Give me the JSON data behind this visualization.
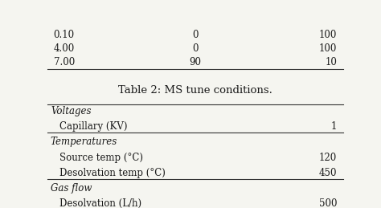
{
  "title": "Table 2: MS tune conditions.",
  "title_fontsize": 9.5,
  "bg_color": "#f5f5f0",
  "rows_top": [
    [
      "0.10",
      "0",
      "100"
    ],
    [
      "4.00",
      "0",
      "100"
    ],
    [
      "7.00",
      "90",
      "10"
    ]
  ],
  "table_rows": [
    {
      "category": "Voltages",
      "italic": true,
      "indent": false,
      "label": "Voltages",
      "value": ""
    },
    {
      "category": "Capillary (KV)",
      "italic": false,
      "indent": true,
      "label": "Capillary (KV)",
      "value": "1"
    },
    {
      "category": "Temperatures",
      "italic": true,
      "indent": false,
      "label": "Temperatures",
      "value": ""
    },
    {
      "category": "Source temp (°C)",
      "italic": false,
      "indent": true,
      "label": "Source temp (°C)",
      "value": "120"
    },
    {
      "category": "Desolvation temp (°C)",
      "italic": false,
      "indent": true,
      "label": "Desolvation temp (°C)",
      "value": "450"
    },
    {
      "category": "Gas flow",
      "italic": true,
      "indent": false,
      "label": "Gas flow",
      "value": ""
    },
    {
      "category": "Desolvation (L/h)",
      "italic": false,
      "indent": true,
      "label": "Desolvation (L/h)",
      "value": "500"
    }
  ],
  "separator_after": [
    "Capillary (KV)",
    "Desolvation temp (°C)"
  ],
  "font_family": "serif",
  "text_color": "#1a1a1a",
  "line_color": "#333333",
  "font_size": 8.5
}
